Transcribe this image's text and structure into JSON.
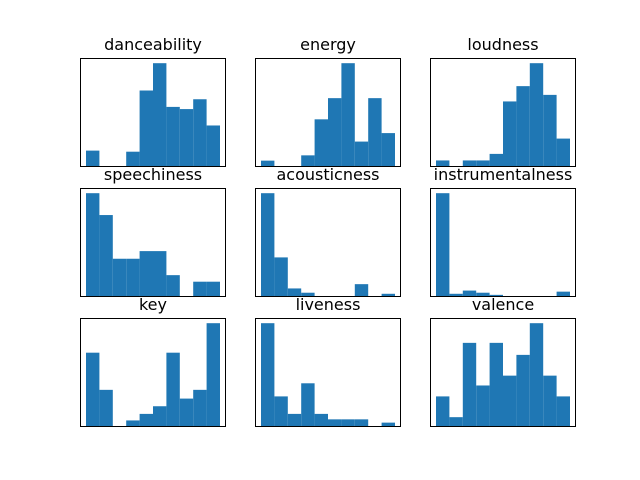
{
  "chart_data": [
    {
      "type": "histogram",
      "title": "danceability",
      "bins": 10,
      "counts": [
        1.5,
        0,
        0,
        1.4,
        7.0,
        9.5,
        5.5,
        5.3,
        6.2,
        3.8
      ],
      "color": "#1f77b4",
      "axes_ticks": false
    },
    {
      "type": "histogram",
      "title": "energy",
      "bins": 10,
      "counts": [
        0.6,
        0,
        0,
        1.1,
        4.5,
        6.5,
        9.8,
        2.4,
        6.5,
        3.2
      ],
      "color": "#1f77b4",
      "axes_ticks": false
    },
    {
      "type": "histogram",
      "title": "loudness",
      "bins": 10,
      "counts": [
        0.6,
        0,
        0.6,
        0.6,
        1.2,
        6.0,
        7.4,
        9.5,
        6.6,
        2.6
      ],
      "color": "#1f77b4",
      "axes_ticks": false
    },
    {
      "type": "histogram",
      "title": "speechiness",
      "bins": 10,
      "counts": [
        9.5,
        7.5,
        3.5,
        3.5,
        4.2,
        4.2,
        2.0,
        0,
        1.4,
        1.4
      ],
      "color": "#1f77b4",
      "axes_ticks": false
    },
    {
      "type": "histogram",
      "title": "acousticness",
      "bins": 10,
      "counts": [
        9.7,
        3.7,
        0.8,
        0.4,
        0,
        0,
        0,
        1.2,
        0,
        0.3
      ],
      "color": "#1f77b4",
      "axes_ticks": false
    },
    {
      "type": "histogram",
      "title": "instrumentalness",
      "bins": 10,
      "counts": [
        9.7,
        0.3,
        0.6,
        0.4,
        0.2,
        0,
        0,
        0,
        0,
        0.5
      ],
      "color": "#1f77b4",
      "axes_ticks": false
    },
    {
      "type": "histogram",
      "title": "key",
      "bins": 10,
      "counts": [
        6.8,
        3.4,
        0,
        0.6,
        1.2,
        1.9,
        6.8,
        2.6,
        3.4,
        9.5
      ],
      "color": "#1f77b4",
      "axes_ticks": false
    },
    {
      "type": "histogram",
      "title": "liveness",
      "bins": 10,
      "counts": [
        9.5,
        2.8,
        1.2,
        4.0,
        1.2,
        0.7,
        0.7,
        0.7,
        0,
        0.4
      ],
      "color": "#1f77b4",
      "axes_ticks": false
    },
    {
      "type": "histogram",
      "title": "valence",
      "bins": 10,
      "counts": [
        2.8,
        0.9,
        7.7,
        3.8,
        7.7,
        4.7,
        6.6,
        9.5,
        4.7,
        2.8
      ],
      "color": "#1f77b4",
      "axes_ticks": false
    }
  ]
}
